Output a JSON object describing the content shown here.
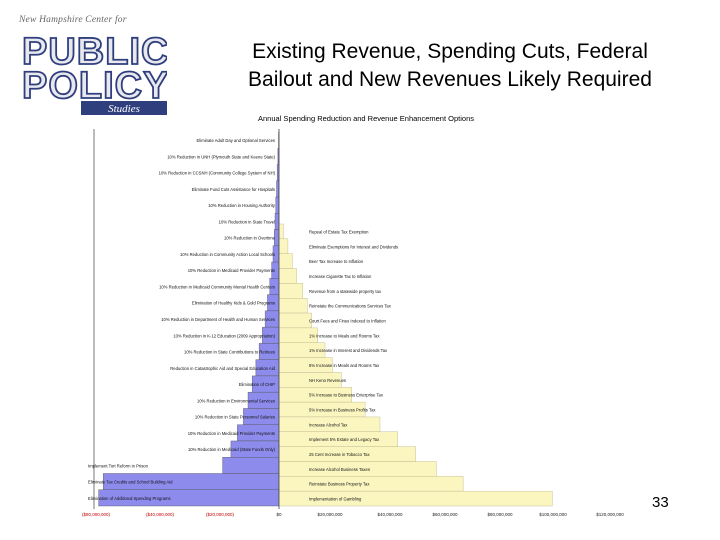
{
  "slide": {
    "logo_top": "New Hampshire Center for",
    "logo_main": "PUBLIC POLICY",
    "logo_sub": "Studies",
    "title_line1": "Existing Revenue, Spending Cuts, Federal",
    "title_line2": "Bailout and New Revenues Likely Required",
    "page_number": "33"
  },
  "colors": {
    "cuts": "#8d8bec",
    "revenue": "#fbf6c0",
    "outline": "#555555",
    "logo_blue": "#2f3f7e",
    "logo_light": "#e8e8ee"
  },
  "chart_data": {
    "type": "bar",
    "orientation": "horizontal",
    "title": "Annual Spending Reduction and Revenue Enhancement Options",
    "xlim": [
      -200000000,
      100000000
    ],
    "x_ticks": [
      "($80,000,000)",
      "($40,000,000)",
      "($20,000,000)",
      "$0",
      "$20,000,000",
      "$40,000,000",
      "$60,000,000",
      "$80,000,000",
      "$100,000,000",
      "$120,000,000"
    ],
    "spending_cuts": [
      {
        "label": "Eliminate Adult Day and Optional Services",
        "value": -500000
      },
      {
        "label": "10% Reduction in UNH (Plymouth State and Keene State)",
        "value": -1200000
      },
      {
        "label": "10% Reduction in CCSNH (Community College System of NH)",
        "value": -2000000
      },
      {
        "label": "Eliminate Fund Cuts Assistance for Hospitals",
        "value": -2700000
      },
      {
        "label": "10% Reduction in Housing Authority",
        "value": -3500000
      },
      {
        "label": "10% Reduction in State Travel",
        "value": -4300000
      },
      {
        "label": "10% Reduction in Overtime",
        "value": -5200000
      },
      {
        "label": "10% Reduction in Community Action Local Schools",
        "value": -6500000
      },
      {
        "label": "10% Reduction in Medicaid Provider Payments",
        "value": -8000000
      },
      {
        "label": "10% Reduction in Medicaid Community Mental Health Centers",
        "value": -10000000
      },
      {
        "label": "Elimination of Healthy Kids & Gold Programs",
        "value": -12500000
      },
      {
        "label": "10% Reduction in Department of Health and Human Services",
        "value": -15000000
      },
      {
        "label": "10% Reduction in K-12 Education (2009 Appropriation)",
        "value": -18000000
      },
      {
        "label": "10% Reduction in State Contributions to Retirees",
        "value": -21500000
      },
      {
        "label": "Reduction in Catastrophic Aid and Special Education Aid",
        "value": -25000000
      },
      {
        "label": "Elimination of CHIP",
        "value": -29000000
      },
      {
        "label": "10% Reduction in Environmental Services",
        "value": -33500000
      },
      {
        "label": "10% Reduction in State Personnel Salaries",
        "value": -38500000
      },
      {
        "label": "10% Reduction in Medicaid Provider Payments",
        "value": -45000000
      },
      {
        "label": "10% Reduction in Medicaid (State Funds Only)",
        "value": -52000000
      },
      {
        "label": "Implement Tort Reform in Prison",
        "value": -61000000
      },
      {
        "label": "Eliminate Tax Credits and School Building Aid",
        "value": -190000000
      },
      {
        "label": "Elimination of Additional Spending Programs",
        "value": -195000000
      }
    ],
    "revenue_options": [
      {
        "label": "Repeal of Estate Tax Exemption",
        "value": 1500000
      },
      {
        "label": "Eliminate Exemptions for Interest and Dividends",
        "value": 3000000
      },
      {
        "label": "Beer Tax Increase to Inflation",
        "value": 4500000
      },
      {
        "label": "Increase Cigarette Tax to Inflation",
        "value": 6000000
      },
      {
        "label": "Revenue from a statewide property tax",
        "value": 8000000
      },
      {
        "label": "Reinstate the Communications Services Tax",
        "value": 9500000
      },
      {
        "label": "Court Fees and Fines Indexed to Inflation",
        "value": 11000000
      },
      {
        "label": "1% Increase to Meals and Rooms Tax",
        "value": 13000000
      },
      {
        "label": "1% Increase in Interest and Dividends Tax",
        "value": 15500000
      },
      {
        "label": "5% Increase in Meals and Rooms Tax",
        "value": 18000000
      },
      {
        "label": "NH Keno Revenues",
        "value": 21000000
      },
      {
        "label": "5% Increase to Business Enterprise Tax",
        "value": 24500000
      },
      {
        "label": "5% Increase in Business Profits Tax",
        "value": 29000000
      },
      {
        "label": "Increase Alcohol Tax",
        "value": 34000000
      },
      {
        "label": "Implement 5% Estate and Legacy Tax",
        "value": 40000000
      },
      {
        "label": "25 Cent Increase in Tobacco Tax",
        "value": 46000000
      },
      {
        "label": "Increase Alcohol Business Taxes",
        "value": 53000000
      },
      {
        "label": "Reinstate Business Property Tax",
        "value": 62000000
      },
      {
        "label": "Implementation of Gambling",
        "value": 92000000
      }
    ]
  }
}
